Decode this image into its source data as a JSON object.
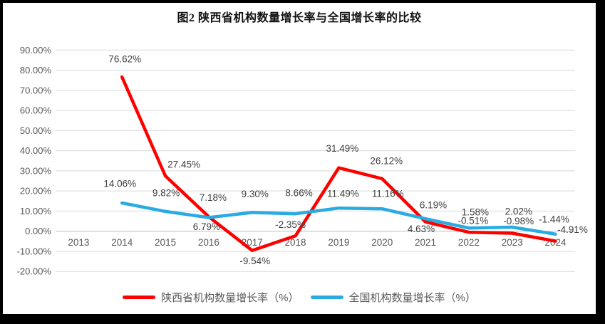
{
  "chart_data": {
    "type": "line",
    "title": "图2 陕西省机构数量增长率与全国增长率的比较",
    "categories": [
      "2013",
      "2014",
      "2015",
      "2016",
      "2017",
      "2018",
      "2019",
      "2020",
      "2021",
      "2022",
      "2023",
      "2024"
    ],
    "series": [
      {
        "key": "shaanxi",
        "name": "陕西省机构数量增长率（%）",
        "color": "#FF0000",
        "values": [
          null,
          76.62,
          27.45,
          7.18,
          -9.54,
          -2.35,
          31.49,
          26.12,
          4.63,
          -0.51,
          -0.98,
          -4.91
        ],
        "labels": [
          null,
          "76.62%",
          "27.45%",
          "7.18%",
          "-9.54%",
          "-2.35%",
          "31.49%",
          "26.12%",
          "4.63%",
          "-0.51%",
          "-0.98%",
          "-4.91%"
        ]
      },
      {
        "key": "national",
        "name": "全国机构数量增长率（%）",
        "color": "#29ABE2",
        "values": [
          null,
          14.06,
          9.82,
          6.79,
          9.3,
          8.66,
          11.49,
          11.16,
          6.19,
          1.58,
          2.02,
          -1.44
        ],
        "labels": [
          null,
          "14.06%",
          "9.82%",
          "6.79%",
          "9.30%",
          "8.66%",
          "11.49%",
          "11.16%",
          "6.19%",
          "1.58%",
          "2.02%",
          "-1.44%"
        ]
      }
    ],
    "y_ticks": [
      {
        "v": 90,
        "label": "90.00%"
      },
      {
        "v": 80,
        "label": "80.00%"
      },
      {
        "v": 70,
        "label": "70.00%"
      },
      {
        "v": 60,
        "label": "60.00%"
      },
      {
        "v": 50,
        "label": "50.00%"
      },
      {
        "v": 40,
        "label": "40.00%"
      },
      {
        "v": 30,
        "label": "30.00%"
      },
      {
        "v": 20,
        "label": "20.00%"
      },
      {
        "v": 10,
        "label": "10.00%"
      },
      {
        "v": 0,
        "label": "0.00%"
      },
      {
        "v": -10,
        "label": "-10.00%"
      },
      {
        "v": -20,
        "label": "-20.00%"
      }
    ],
    "ylim": [
      -20,
      90
    ],
    "xlabel": "",
    "ylabel": "",
    "grid": true,
    "legend_position": "bottom",
    "colors": {
      "gridline": "#D9D9D9",
      "zero_axis": "#BFBFBF",
      "axis_label": "#595959",
      "data_label": "#404040",
      "panel_bg": "#FFFFFF",
      "frame_bg": "#000000"
    }
  }
}
